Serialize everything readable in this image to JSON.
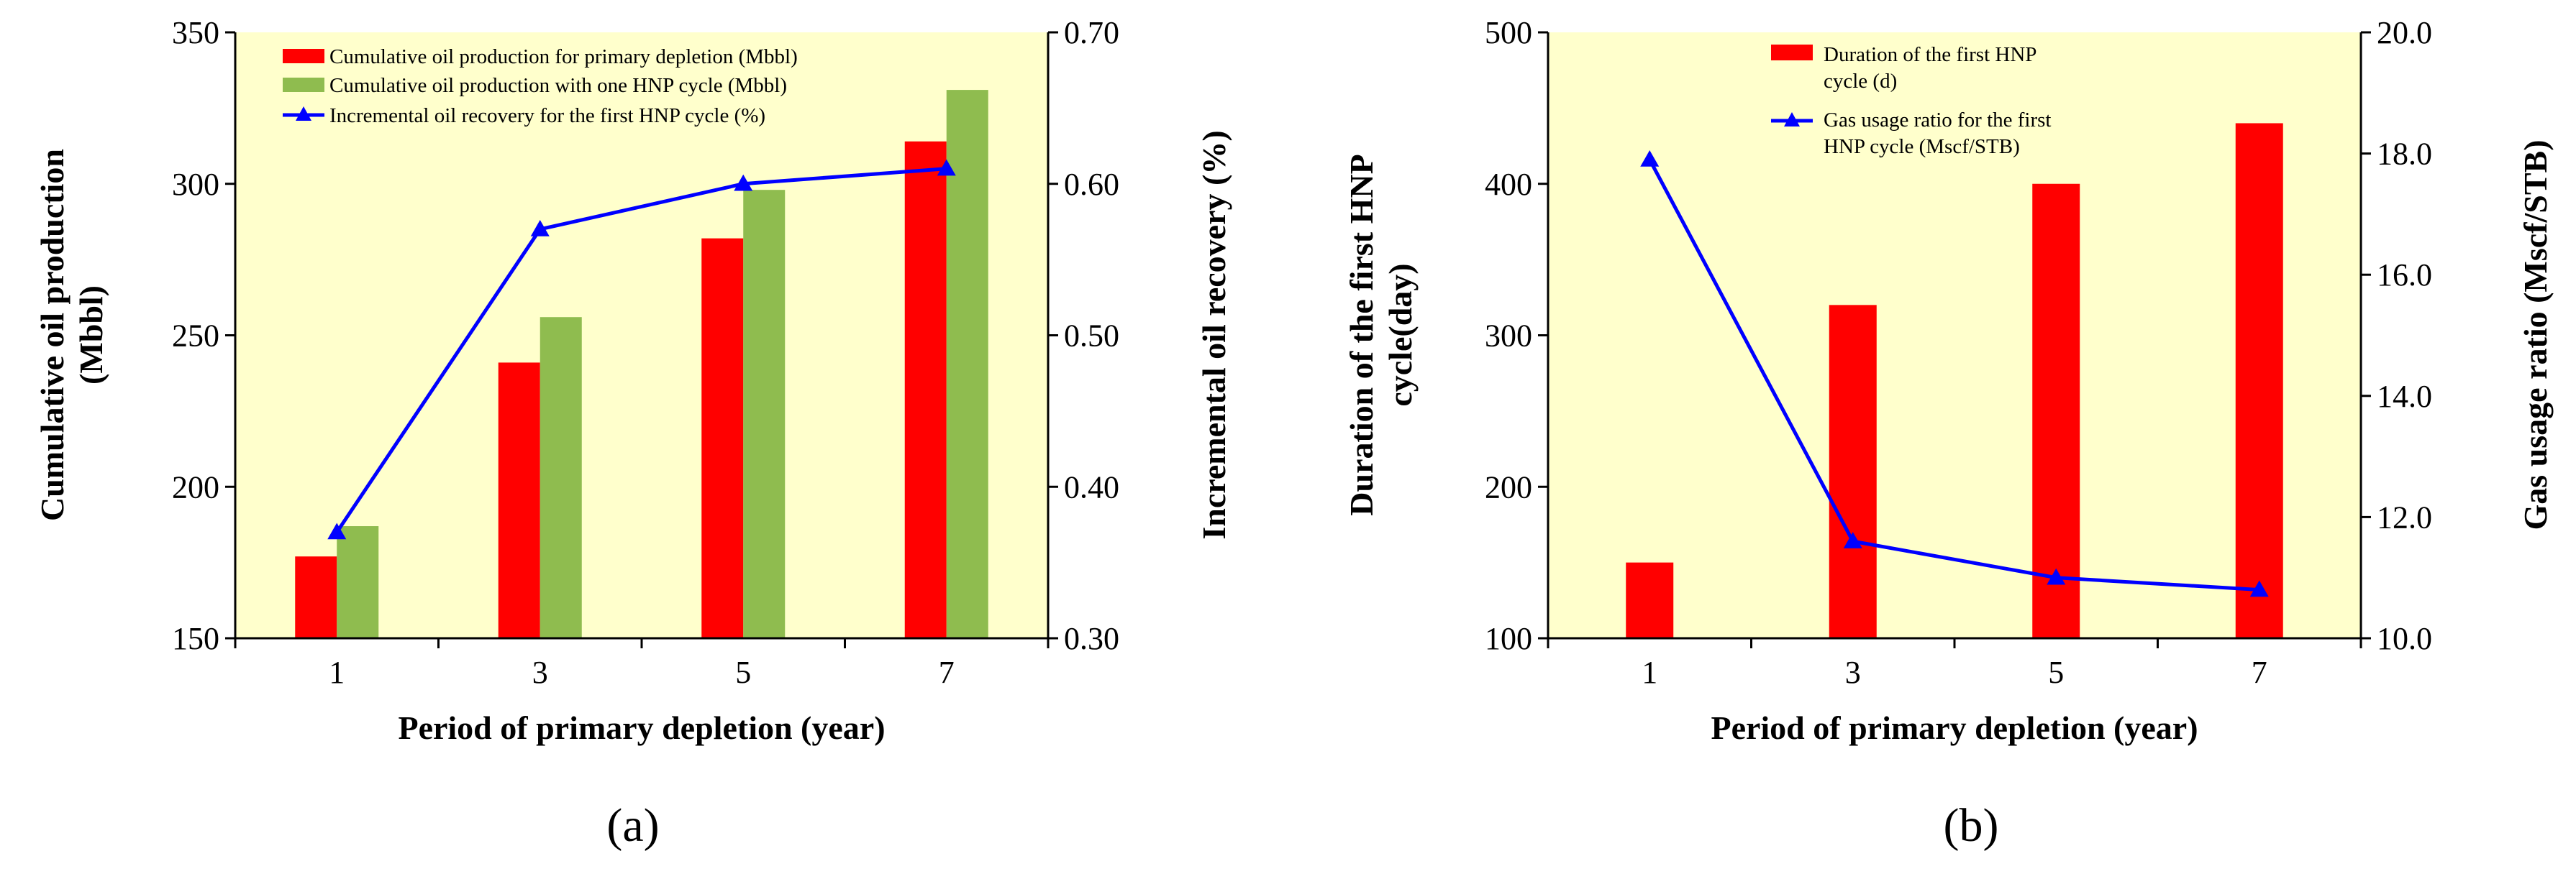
{
  "colors": {
    "plot_bg": "#FFFFCC",
    "red": "#FF0000",
    "green": "#8FBC4F",
    "blue": "#0000FF",
    "axis": "#000000"
  },
  "chart_data": [
    {
      "id": "a",
      "type": "bar+line",
      "panel_label": "(a)",
      "xlabel": "Period of primary depletion (year)",
      "ylabel_left_line1": "Cumulative oil production",
      "ylabel_left_line2": "(Mbbl)",
      "ylabel_right": "Incremental oil recovery (%)",
      "categories": [
        "1",
        "3",
        "5",
        "7"
      ],
      "ylim_left": [
        150,
        350
      ],
      "yticks_left": [
        "150",
        "200",
        "250",
        "300",
        "350"
      ],
      "ylim_right": [
        0.3,
        0.7
      ],
      "yticks_right": [
        "0.30",
        "0.40",
        "0.50",
        "0.60",
        "0.70"
      ],
      "series": [
        {
          "name": "Cumulative oil production for primary depletion (Mbbl)",
          "kind": "bar",
          "axis": "left",
          "color": "#FF0000",
          "values": [
            177,
            241,
            282,
            314
          ]
        },
        {
          "name": "Cumulative oil production with one HNP cycle (Mbbl)",
          "kind": "bar",
          "axis": "left",
          "color": "#8FBC4F",
          "values": [
            187,
            256,
            298,
            331
          ]
        },
        {
          "name": "Incremental oil recovery for the first HNP cycle (%)",
          "kind": "line",
          "axis": "right",
          "color": "#0000FF",
          "values": [
            0.37,
            0.57,
            0.6,
            0.61
          ]
        }
      ],
      "legend": [
        "Cumulative oil production for primary depletion (Mbbl)",
        "Cumulative oil production with one HNP cycle (Mbbl)",
        "Incremental oil recovery for the first HNP cycle (%)"
      ]
    },
    {
      "id": "b",
      "type": "bar+line",
      "panel_label": "(b)",
      "xlabel": "Period of primary depletion (year)",
      "ylabel_left_line1": "Duration of the first HNP",
      "ylabel_left_line2": "cycle(day)",
      "ylabel_right": "Gas usage ratio (Mscf/STB)",
      "categories": [
        "1",
        "3",
        "5",
        "7"
      ],
      "ylim_left": [
        100,
        500
      ],
      "yticks_left": [
        "100",
        "200",
        "300",
        "400",
        "500"
      ],
      "ylim_right": [
        10.0,
        20.0
      ],
      "yticks_right": [
        "10.0",
        "12.0",
        "14.0",
        "16.0",
        "18.0",
        "20.0"
      ],
      "series": [
        {
          "name": "Duration of the first HNP cycle (d)",
          "kind": "bar",
          "axis": "left",
          "color": "#FF0000",
          "values": [
            150,
            320,
            400,
            440
          ]
        },
        {
          "name": "Gas usage ratio for the first HNP cycle (Mscf/STB)",
          "kind": "line",
          "axis": "right",
          "color": "#0000FF",
          "values": [
            17.9,
            11.6,
            11.0,
            10.8
          ]
        }
      ],
      "legend": [
        [
          "Duration of the first HNP",
          "cycle (d)"
        ],
        [
          "Gas usage ratio for the first",
          "HNP cycle (Mscf/STB)"
        ]
      ]
    }
  ]
}
